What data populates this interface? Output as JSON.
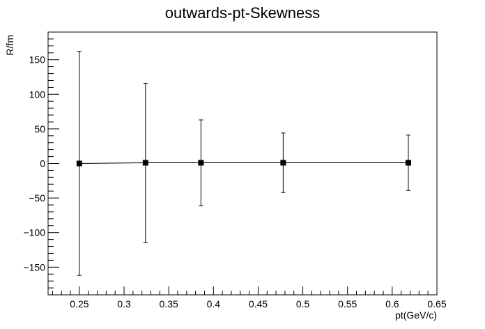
{
  "chart_data": {
    "type": "scatter",
    "title": "outwards-pt-Skewness",
    "xlabel": "pt(GeV/c)",
    "ylabel": "R/fm",
    "xlim": [
      0.215,
      0.65
    ],
    "ylim": [
      -190,
      190
    ],
    "x_ticks": [
      0.25,
      0.3,
      0.35,
      0.4,
      0.45,
      0.5,
      0.55,
      0.6,
      0.65
    ],
    "x_tick_labels": [
      "0.25",
      "0.3",
      "0.35",
      "0.4",
      "0.45",
      "0.5",
      "0.55",
      "0.6",
      "0.65"
    ],
    "y_ticks": [
      -150,
      -100,
      -50,
      0,
      50,
      100,
      150
    ],
    "y_tick_labels": [
      "−150",
      "−100",
      "−50",
      "0",
      "50",
      "100",
      "150"
    ],
    "grid": false,
    "series": [
      {
        "name": "outwards-pt-Skewness",
        "x": [
          0.25,
          0.324,
          0.386,
          0.478,
          0.618
        ],
        "y": [
          0,
          1,
          1,
          1,
          1
        ],
        "err": [
          162,
          115,
          62,
          43,
          40
        ]
      }
    ]
  }
}
